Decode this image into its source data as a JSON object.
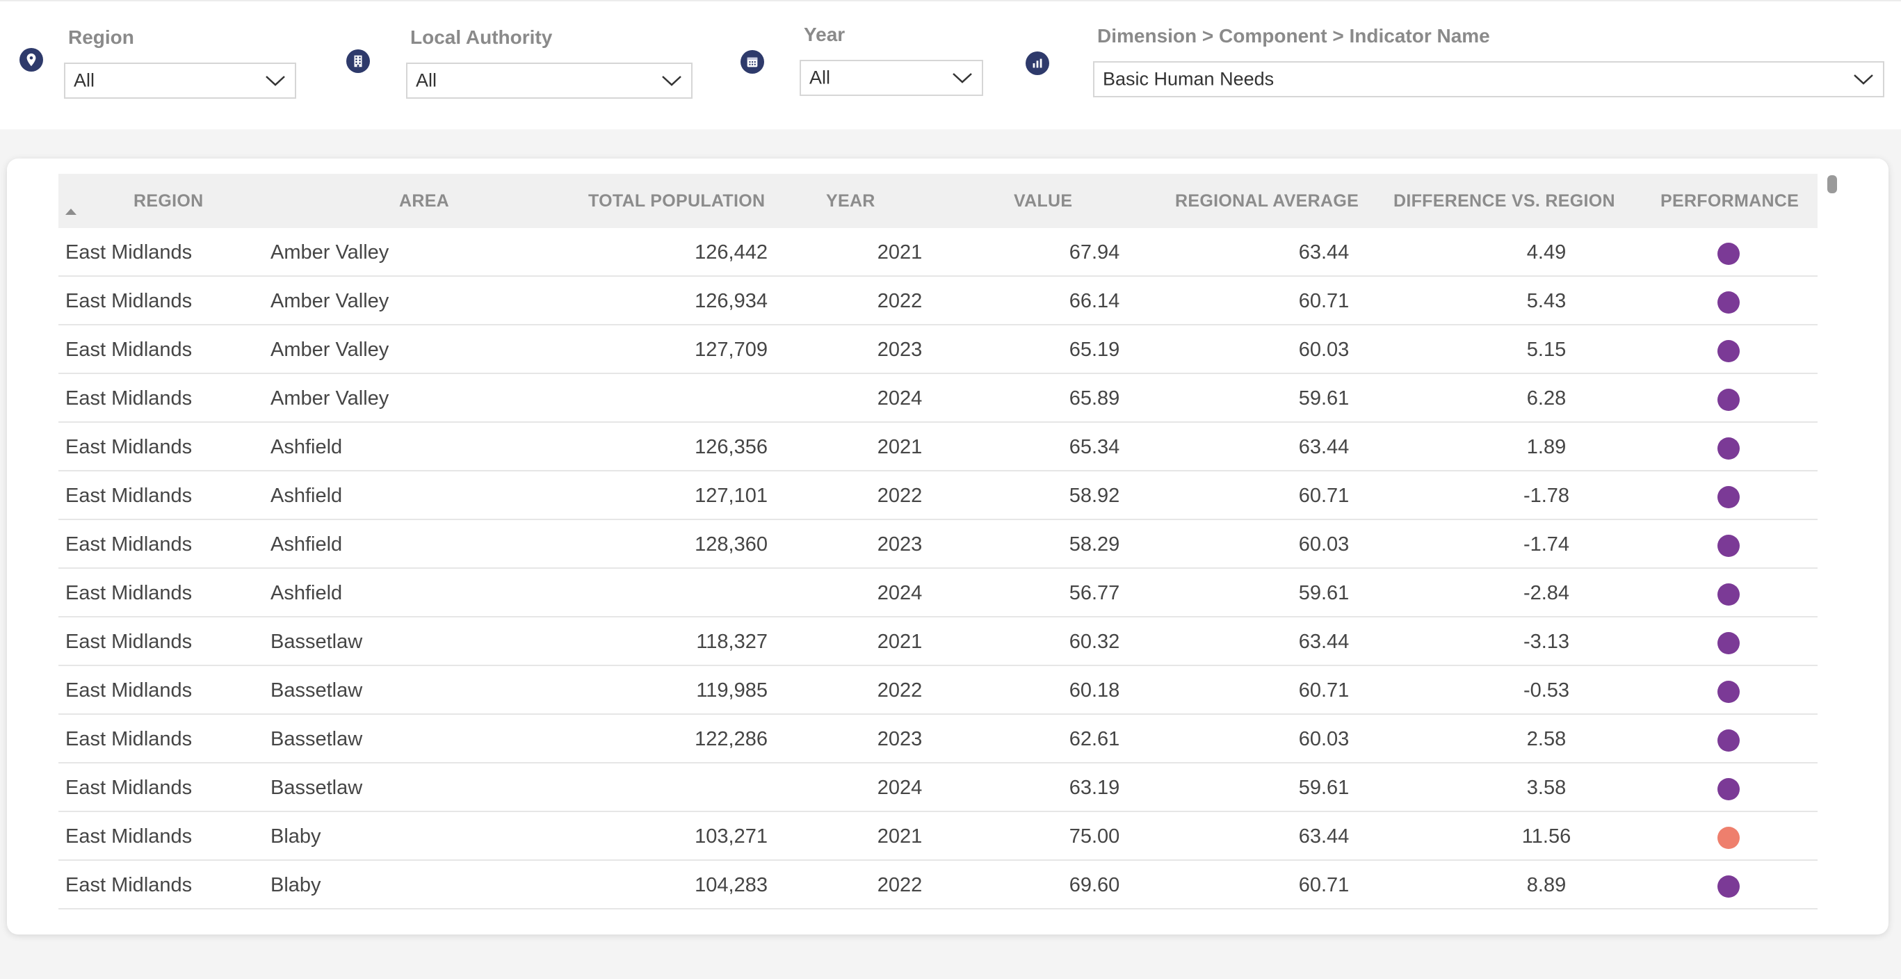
{
  "filters": {
    "region": {
      "label": "Region",
      "value": "All"
    },
    "local_authority": {
      "label": "Local Authority",
      "value": "All"
    },
    "year": {
      "label": "Year",
      "value": "All"
    },
    "indicator": {
      "label": "Dimension > Component > Indicator Name",
      "value": "Basic Human Needs"
    }
  },
  "icons": {
    "region": "map-pin-icon",
    "local_authority": "building-icon",
    "year": "calendar-icon",
    "indicator": "bar-chart-icon",
    "color": "#2e3a6b"
  },
  "table": {
    "columns": [
      "REGION",
      "AREA",
      "TOTAL POPULATION",
      "YEAR",
      "VALUE",
      "REGIONAL AVERAGE",
      "DIFFERENCE VS. REGION",
      "PERFORMANCE"
    ],
    "sort": {
      "column": "REGION",
      "direction": "ascending"
    },
    "performance_colors": {
      "purple": "#7b3a96",
      "salmon": "#ee7f6d"
    },
    "rows": [
      {
        "region": "East Midlands",
        "area": "Amber Valley",
        "population": "126,442",
        "year": "2021",
        "value": "67.94",
        "regional_average": "63.44",
        "difference": "4.49",
        "performance": "purple"
      },
      {
        "region": "East Midlands",
        "area": "Amber Valley",
        "population": "126,934",
        "year": "2022",
        "value": "66.14",
        "regional_average": "60.71",
        "difference": "5.43",
        "performance": "purple"
      },
      {
        "region": "East Midlands",
        "area": "Amber Valley",
        "population": "127,709",
        "year": "2023",
        "value": "65.19",
        "regional_average": "60.03",
        "difference": "5.15",
        "performance": "purple"
      },
      {
        "region": "East Midlands",
        "area": "Amber Valley",
        "population": "",
        "year": "2024",
        "value": "65.89",
        "regional_average": "59.61",
        "difference": "6.28",
        "performance": "purple"
      },
      {
        "region": "East Midlands",
        "area": "Ashfield",
        "population": "126,356",
        "year": "2021",
        "value": "65.34",
        "regional_average": "63.44",
        "difference": "1.89",
        "performance": "purple"
      },
      {
        "region": "East Midlands",
        "area": "Ashfield",
        "population": "127,101",
        "year": "2022",
        "value": "58.92",
        "regional_average": "60.71",
        "difference": "-1.78",
        "performance": "purple"
      },
      {
        "region": "East Midlands",
        "area": "Ashfield",
        "population": "128,360",
        "year": "2023",
        "value": "58.29",
        "regional_average": "60.03",
        "difference": "-1.74",
        "performance": "purple"
      },
      {
        "region": "East Midlands",
        "area": "Ashfield",
        "population": "",
        "year": "2024",
        "value": "56.77",
        "regional_average": "59.61",
        "difference": "-2.84",
        "performance": "purple"
      },
      {
        "region": "East Midlands",
        "area": "Bassetlaw",
        "population": "118,327",
        "year": "2021",
        "value": "60.32",
        "regional_average": "63.44",
        "difference": "-3.13",
        "performance": "purple"
      },
      {
        "region": "East Midlands",
        "area": "Bassetlaw",
        "population": "119,985",
        "year": "2022",
        "value": "60.18",
        "regional_average": "60.71",
        "difference": "-0.53",
        "performance": "purple"
      },
      {
        "region": "East Midlands",
        "area": "Bassetlaw",
        "population": "122,286",
        "year": "2023",
        "value": "62.61",
        "regional_average": "60.03",
        "difference": "2.58",
        "performance": "purple"
      },
      {
        "region": "East Midlands",
        "area": "Bassetlaw",
        "population": "",
        "year": "2024",
        "value": "63.19",
        "regional_average": "59.61",
        "difference": "3.58",
        "performance": "purple"
      },
      {
        "region": "East Midlands",
        "area": "Blaby",
        "population": "103,271",
        "year": "2021",
        "value": "75.00",
        "regional_average": "63.44",
        "difference": "11.56",
        "performance": "salmon"
      },
      {
        "region": "East Midlands",
        "area": "Blaby",
        "population": "104,283",
        "year": "2022",
        "value": "69.60",
        "regional_average": "60.71",
        "difference": "8.89",
        "performance": "purple"
      }
    ]
  }
}
